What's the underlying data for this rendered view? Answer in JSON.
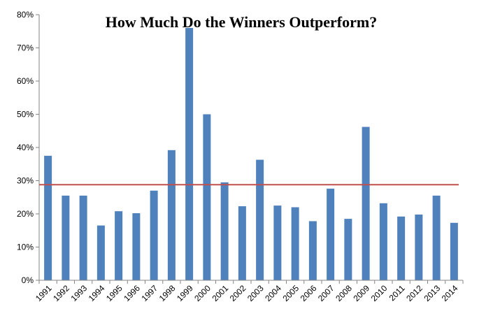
{
  "chart_data": {
    "type": "bar",
    "title": "How Much Do the Winners Outperform?",
    "xlabel": "",
    "ylabel": "",
    "categories": [
      "1991",
      "1992",
      "1993",
      "1994",
      "1995",
      "1996",
      "1997",
      "1998",
      "1999",
      "2000",
      "2001",
      "2002",
      "2003",
      "2004",
      "2005",
      "2006",
      "2007",
      "2008",
      "2009",
      "2010",
      "2011",
      "2012",
      "2013",
      "2014"
    ],
    "values": [
      37.5,
      25.5,
      25.5,
      16.5,
      20.8,
      20.2,
      27,
      39.2,
      76,
      50,
      29.5,
      22.3,
      36.3,
      22.5,
      22,
      17.8,
      27.6,
      18.5,
      46.2,
      23.2,
      19.2,
      19.8,
      25.5,
      17.3
    ],
    "reference_line": 28.8,
    "ylim": [
      0,
      80
    ],
    "yticks": [
      0,
      10,
      20,
      30,
      40,
      50,
      60,
      70,
      80
    ],
    "ytick_labels": [
      "0%",
      "10%",
      "20%",
      "30%",
      "40%",
      "50%",
      "60%",
      "70%",
      "80%"
    ],
    "grid": false,
    "legend": "none",
    "colors": {
      "bar": "#4f81bd",
      "reference_line": "#c0504d"
    }
  }
}
